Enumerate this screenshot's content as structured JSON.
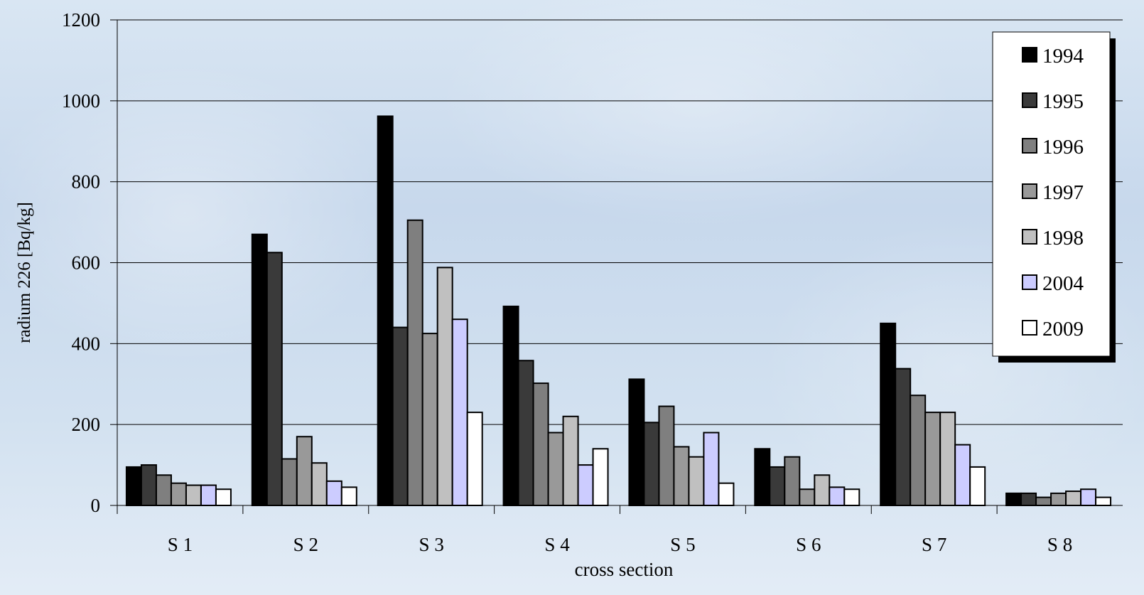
{
  "chart_data": {
    "type": "bar",
    "title": "",
    "xlabel": "cross section",
    "ylabel": "radium 226 [Bq/kg]",
    "ylim": [
      0,
      1200
    ],
    "yticks": [
      0,
      200,
      400,
      600,
      800,
      1000,
      1200
    ],
    "grid": true,
    "legend_position": "top-right",
    "categories": [
      "S 1",
      "S 2",
      "S 3",
      "S 4",
      "S 5",
      "S 6",
      "S 7",
      "S 8"
    ],
    "series": [
      {
        "name": "1994",
        "color": "#000000",
        "values": [
          95,
          670,
          962,
          492,
          312,
          140,
          450,
          30
        ]
      },
      {
        "name": "1995",
        "color": "#3a3a3a",
        "values": [
          100,
          625,
          440,
          358,
          205,
          95,
          338,
          30
        ]
      },
      {
        "name": "1996",
        "color": "#7f7f7f",
        "values": [
          75,
          115,
          705,
          302,
          245,
          120,
          272,
          20
        ]
      },
      {
        "name": "1997",
        "color": "#999999",
        "values": [
          55,
          170,
          425,
          180,
          145,
          40,
          230,
          30
        ]
      },
      {
        "name": "1998",
        "color": "#c0c0c0",
        "values": [
          50,
          105,
          588,
          220,
          120,
          75,
          230,
          35
        ]
      },
      {
        "name": "2004",
        "color": "#ccccff",
        "values": [
          50,
          60,
          460,
          100,
          180,
          45,
          150,
          40
        ]
      },
      {
        "name": "2009",
        "color": "#ffffff",
        "values": [
          40,
          45,
          230,
          140,
          55,
          40,
          95,
          20
        ]
      }
    ]
  }
}
